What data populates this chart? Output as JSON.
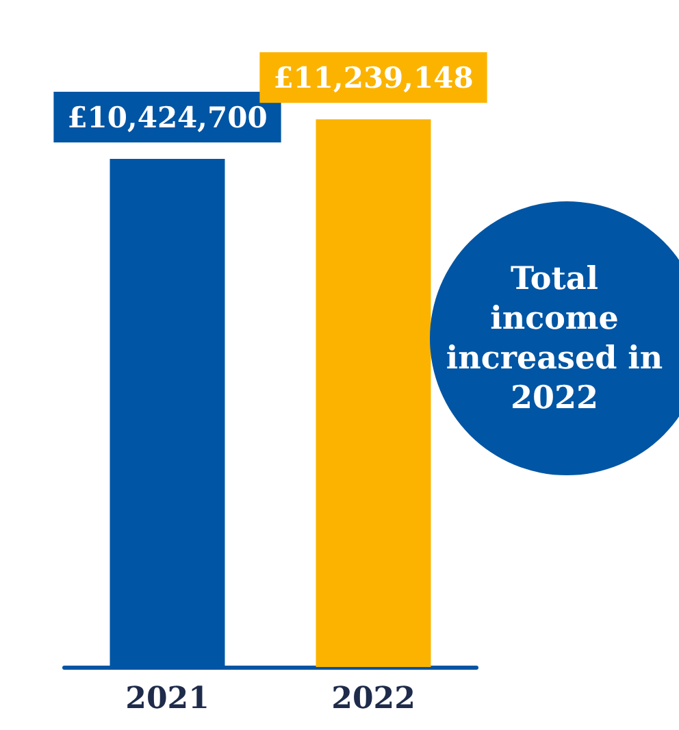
{
  "chart_data": {
    "type": "bar",
    "categories": [
      "2021",
      "2022"
    ],
    "values": [
      10424700,
      11239148
    ],
    "colors": [
      "#0055a4",
      "#fbb300"
    ],
    "value_labels": [
      "£10,424,700",
      "£11,239,148"
    ],
    "annotations": [
      "Total income increased in 2022"
    ],
    "grid": false
  }
}
